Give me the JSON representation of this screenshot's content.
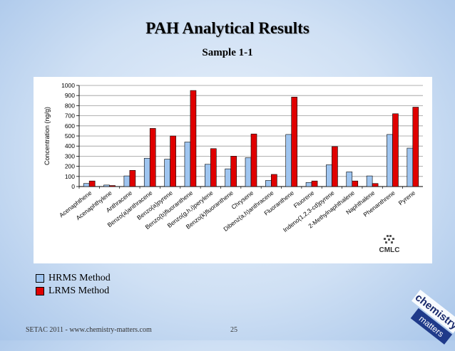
{
  "title": "PAH Analytical Results",
  "subtitle": "Sample 1-1",
  "footer": {
    "left": "SETAC 2011 - www.chemistry-matters.com",
    "page": "25"
  },
  "logo": {
    "text": "CMLC"
  },
  "brand": {
    "line1": "chemistry",
    "line2": "matters"
  },
  "colors": {
    "hrms": "#9fc5f0",
    "lrms": "#e00000"
  },
  "chart_data": {
    "type": "bar",
    "ylabel": "Concentration (ng/g)",
    "ylim": [
      0,
      1000
    ],
    "yticks": [
      0,
      100,
      200,
      300,
      400,
      500,
      600,
      700,
      800,
      900,
      1000
    ],
    "grid": true,
    "legend_position": "bottom-left",
    "categories": [
      "Acenaphthene",
      "Acenaphthylene",
      "Anthracene",
      "Benzo(a)anthracene",
      "Benzo(a)pyrene",
      "Benzo(b)fluoranthene",
      "Benzo(g,h,i)perylene",
      "Benzo(k)fluoranthene",
      "Chrysene",
      "Dibenz(a,h)anthracene",
      "Fluoranthene",
      "Fluorene",
      "Indeno(1,2,3-cd)pyrene",
      "2-Methylnaphthalene",
      "Naphthalene",
      "Phenanthrene",
      "Pyrene"
    ],
    "series": [
      {
        "name": "HRMS Method",
        "color": "#9fc5f0",
        "values": [
          30,
          15,
          105,
          280,
          270,
          440,
          220,
          175,
          285,
          60,
          515,
          40,
          215,
          145,
          105,
          515,
          380
        ]
      },
      {
        "name": "LRMS Method",
        "color": "#e00000",
        "values": [
          55,
          10,
          160,
          575,
          500,
          950,
          375,
          300,
          520,
          120,
          885,
          55,
          395,
          55,
          30,
          720,
          785
        ]
      }
    ]
  }
}
